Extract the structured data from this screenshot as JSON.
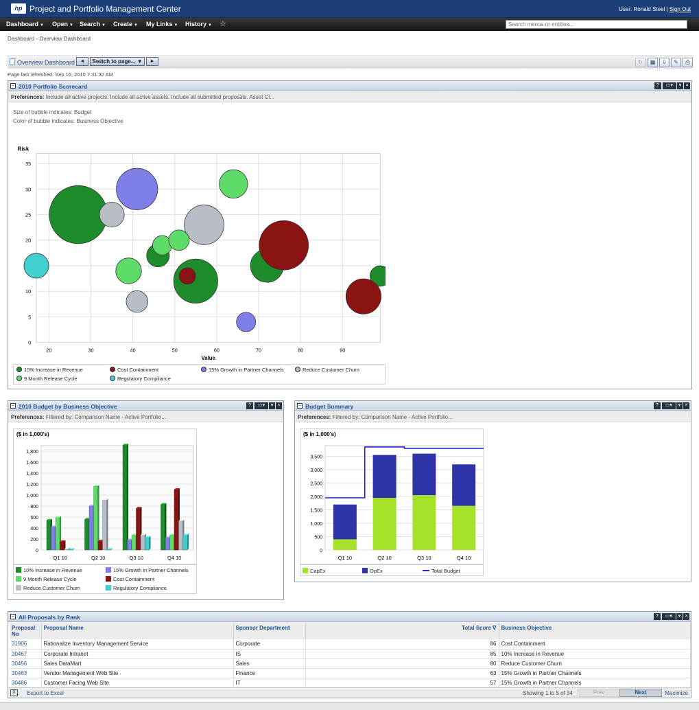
{
  "header": {
    "logo_text": "hp",
    "title": "Project and Portfolio Management Center",
    "user_label": "User: Ronald Steel",
    "separator": "|",
    "signout": "Sign Out"
  },
  "menu": {
    "items": [
      "Dashboard",
      "Open",
      "Search",
      "Create",
      "My Links",
      "History"
    ],
    "search_placeholder": "Search menus or entities..."
  },
  "breadcrumb": "Dashboard - Overview Dashboard",
  "dashboard": {
    "name": "Overview Dashboard",
    "prev": "◄",
    "switch_label": "Switch to page... ▼",
    "next": "►",
    "refreshed": "Page last refreshed: Sep 16, 2010 7:31:32 AM"
  },
  "colors": {
    "revenue": "#1e8c2a",
    "cost": "#8a1414",
    "partner": "#7f7fe8",
    "churn": "#b9bec6",
    "release": "#5fdb6a",
    "regulatory": "#40d0d0",
    "capex": "#a6e22a",
    "opex": "#2e33a6",
    "budget": "#2024c8",
    "header_bg": "#1c3f7a"
  },
  "scorecard": {
    "title": "2010 Portfolio Scorecard",
    "prefs_label": "Preferences:",
    "prefs_text": "Include all active projects. Include all active assets. Include all submitted proposals. Asset Cl...",
    "size_note": "Size of bubble indicates: Budget",
    "color_note": "Color of bubble indicates: Business Objective"
  },
  "budget_objective": {
    "title": "2010 Budget by Business Objective",
    "prefs_label": "Preferences:",
    "prefs_text": "Filtered by: Comparison Name - Active Portfolio..."
  },
  "budget_summary": {
    "title": "Budget Summary",
    "prefs_label": "Preferences:",
    "prefs_text": "Filtered by: Comparison Name - Active Portfolio..."
  },
  "proposals": {
    "title": "All Proposals by Rank",
    "columns": {
      "no": "Proposal No",
      "name": "Proposal Name",
      "dept": "Sponsor Department",
      "score": "Total Score ∇",
      "objective": "Business Objective"
    },
    "rows": [
      {
        "no": "31906",
        "name": "Rationalize Inventory Management Service",
        "dept": "Corporate",
        "score": "86",
        "objective": "Cost Containment"
      },
      {
        "no": "30467",
        "name": "Corporate Intranet",
        "dept": "IS",
        "score": "85",
        "objective": "10% Increase in Revenue"
      },
      {
        "no": "30456",
        "name": "Sales DataMart",
        "dept": "Sales",
        "score": "80",
        "objective": "Reduce Customer Churn"
      },
      {
        "no": "30463",
        "name": "Vendor Management Web Site",
        "dept": "Finance",
        "score": "63",
        "objective": "15% Growth in Partner Channels"
      },
      {
        "no": "30486",
        "name": "Customer Facing Web Site",
        "dept": "IT",
        "score": "57",
        "objective": "15% Growth in Partner Channels"
      }
    ],
    "export": "Export to Excel",
    "showing": "Showing 1 to 5 of 34",
    "prev": "Prev",
    "next": "Next",
    "maximize": "Maximize"
  },
  "chart_data": [
    {
      "type": "scatter",
      "title": "",
      "xlabel": "Value",
      "ylabel": "Risk",
      "xlim": [
        17,
        99
      ],
      "ylim": [
        0,
        38
      ],
      "xticks": [
        20,
        30,
        40,
        50,
        60,
        70,
        80,
        90
      ],
      "yticks": [
        0,
        5,
        10,
        15,
        20,
        25,
        30,
        35
      ],
      "grid": true,
      "legend_position": "bottom",
      "series": [
        {
          "name": "10% Increase in Revenue",
          "color": "#1e8c2a",
          "points": [
            {
              "x": 27,
              "y": 25,
              "size": 7
            },
            {
              "x": 46,
              "y": 17,
              "size": 1
            },
            {
              "x": 55,
              "y": 12,
              "size": 4
            },
            {
              "x": 72,
              "y": 15,
              "size": 2.2
            },
            {
              "x": 99,
              "y": 13,
              "size": 0.8
            }
          ]
        },
        {
          "name": "Cost Containment",
          "color": "#8a1414",
          "points": [
            {
              "x": 76,
              "y": 19,
              "size": 5
            },
            {
              "x": 95,
              "y": 9,
              "size": 2.5
            },
            {
              "x": 53,
              "y": 13,
              "size": 0.5
            }
          ]
        },
        {
          "name": "15% Growth in Partner Channels",
          "color": "#7f7fe8",
          "points": [
            {
              "x": 41,
              "y": 30,
              "size": 3.5
            },
            {
              "x": 67,
              "y": 4,
              "size": 0.7
            }
          ]
        },
        {
          "name": "Reduce Customer Churn",
          "color": "#b9bec6",
          "points": [
            {
              "x": 57,
              "y": 23,
              "size": 3.2
            },
            {
              "x": 35,
              "y": 25,
              "size": 1.2
            },
            {
              "x": 41,
              "y": 8,
              "size": 0.9
            }
          ]
        },
        {
          "name": "9 Month Release Cycle",
          "color": "#5fdb6a",
          "points": [
            {
              "x": 64,
              "y": 31,
              "size": 1.6
            },
            {
              "x": 39,
              "y": 14,
              "size": 1.3
            },
            {
              "x": 47,
              "y": 19,
              "size": 0.7
            },
            {
              "x": 51,
              "y": 20,
              "size": 0.8
            }
          ]
        },
        {
          "name": "Regulatory Compliance",
          "color": "#40d0d0",
          "points": [
            {
              "x": 17,
              "y": 15,
              "size": 1.2
            }
          ]
        }
      ]
    },
    {
      "type": "bar",
      "title": "($ in 1,000's)",
      "categories": [
        "Q1 10",
        "Q2 10",
        "Q3 10",
        "Q4 10"
      ],
      "ylim": [
        0,
        1900
      ],
      "yticks": [
        0,
        200,
        400,
        600,
        800,
        1000,
        1200,
        1400,
        1600,
        1800
      ],
      "legend_position": "bottom",
      "series": [
        {
          "name": "10% Increase in Revenue",
          "color": "#1e8c2a",
          "values": [
            540,
            560,
            1910,
            830
          ]
        },
        {
          "name": "15% Growth in Partner Channels",
          "color": "#7f7fe8",
          "values": [
            420,
            800,
            180,
            220
          ]
        },
        {
          "name": "9 Month Release Cycle",
          "color": "#5fdb6a",
          "values": [
            590,
            1160,
            270,
            270
          ]
        },
        {
          "name": "Cost Containment",
          "color": "#8a1414",
          "values": [
            150,
            160,
            760,
            1100
          ]
        },
        {
          "name": "Reduce Customer Churn",
          "color": "#b9bec6",
          "values": [
            20,
            910,
            270,
            530
          ]
        },
        {
          "name": "Regulatory Compliance",
          "color": "#40d0d0",
          "values": [
            10,
            10,
            230,
            270
          ]
        }
      ]
    },
    {
      "type": "bar",
      "title": "($ in 1,000's)",
      "stacked": true,
      "categories": [
        "Q1 10",
        "Q2 10",
        "Q3 10",
        "Q4 10"
      ],
      "ylim": [
        0,
        3900
      ],
      "yticks": [
        0,
        500,
        1000,
        1500,
        2000,
        2500,
        3000,
        3500
      ],
      "legend_position": "bottom",
      "series": [
        {
          "name": "CapEx",
          "color": "#a6e22a",
          "values": [
            400,
            1950,
            2050,
            1650
          ]
        },
        {
          "name": "OpEx",
          "color": "#2e33a6",
          "values": [
            1300,
            1600,
            1550,
            1550
          ]
        },
        {
          "name": "Total Budget",
          "color": "#2024c8",
          "type": "line",
          "values": [
            1950,
            3850,
            3800,
            3800
          ]
        }
      ]
    }
  ]
}
